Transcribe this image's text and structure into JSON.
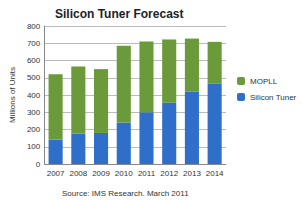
{
  "chart_data": {
    "type": "bar",
    "title": "Silicon Tuner Forecast",
    "y_label": "Millions of Units",
    "annotations": [
      "Source: IMS Research. March 2011"
    ],
    "categories": [
      "2007",
      "2008",
      "2009",
      "2010",
      "2011",
      "2012",
      "2013",
      "2014"
    ],
    "series": [
      {
        "name": "Silicon Tuner",
        "color": "#2f6fc9",
        "values": [
          140,
          175,
          180,
          240,
          300,
          355,
          420,
          465
        ]
      },
      {
        "name": "MOPLL",
        "color": "#6b9a3a",
        "values": [
          380,
          390,
          370,
          445,
          410,
          367,
          307,
          243
        ]
      }
    ],
    "stacked": true,
    "ylim": [
      0,
      800
    ],
    "yticks": [
      0,
      100,
      200,
      300,
      400,
      500,
      600,
      700,
      800
    ],
    "grid": true,
    "legend": "right"
  }
}
